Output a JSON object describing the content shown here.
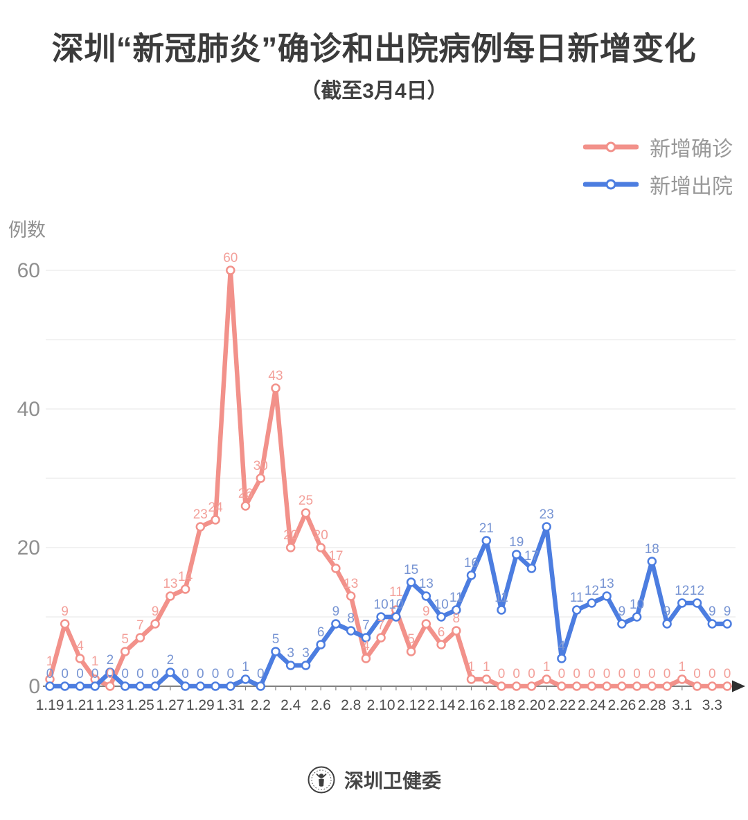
{
  "title": "深圳“新冠肺炎”确诊和出院病例每日新增变化",
  "subtitle": "（截至3月4日）",
  "legend": {
    "confirmed": "新增确诊",
    "discharged": "新增出院"
  },
  "footer": {
    "source": "深圳卫健委"
  },
  "colors": {
    "confirmed": "#F2918A",
    "discharged": "#4C7DE0",
    "confirmed_label": "#F3A09A",
    "discharged_label": "#7794D3",
    "grid": "#EAEAEA",
    "axis": "#808080",
    "axis_arrow": "#2F2F2F",
    "x_tick_label": "#4E4E4E",
    "y_tick_label": "#8F8F8F"
  },
  "chart_data": {
    "type": "line",
    "title": "深圳“新冠肺炎”确诊和出院病例每日新增变化",
    "subtitle": "（截至3月4日）",
    "ylabel": "例数",
    "xlabel": "",
    "ylim": [
      0,
      62
    ],
    "yticks": [
      0,
      20,
      40,
      60
    ],
    "grid": true,
    "grid_step": 10,
    "legend_position": "top-right",
    "x_label_every": 2,
    "x": [
      "1.19",
      "1.20",
      "1.21",
      "1.22",
      "1.23",
      "1.24",
      "1.25",
      "1.26",
      "1.27",
      "1.28",
      "1.29",
      "1.30",
      "1.31",
      "2.1",
      "2.2",
      "2.3",
      "2.4",
      "2.5",
      "2.6",
      "2.7",
      "2.8",
      "2.9",
      "2.10",
      "2.11",
      "2.12",
      "2.13",
      "2.14",
      "2.15",
      "2.16",
      "2.17",
      "2.18",
      "2.19",
      "2.20",
      "2.21",
      "2.22",
      "2.23",
      "2.24",
      "2.25",
      "2.26",
      "2.27",
      "2.28",
      "2.29",
      "3.1",
      "3.2",
      "3.3",
      "3.4"
    ],
    "series": [
      {
        "name": "新增确诊",
        "color_key": "confirmed",
        "values": [
          1,
          9,
          4,
          1,
          0,
          5,
          7,
          9,
          13,
          14,
          23,
          24,
          60,
          26,
          30,
          43,
          20,
          25,
          20,
          17,
          13,
          4,
          7,
          11,
          5,
          9,
          6,
          8,
          1,
          1,
          0,
          0,
          0,
          1,
          0,
          0,
          0,
          0,
          0,
          0,
          0,
          0,
          1,
          0,
          0,
          0
        ]
      },
      {
        "name": "新增出院",
        "color_key": "discharged",
        "values": [
          0,
          0,
          0,
          0,
          2,
          0,
          0,
          0,
          2,
          0,
          0,
          0,
          0,
          1,
          0,
          5,
          3,
          3,
          6,
          9,
          8,
          7,
          10,
          10,
          15,
          13,
          10,
          11,
          16,
          21,
          11,
          19,
          17,
          23,
          4,
          11,
          12,
          13,
          9,
          10,
          18,
          9,
          12,
          12,
          9,
          9
        ]
      }
    ]
  }
}
